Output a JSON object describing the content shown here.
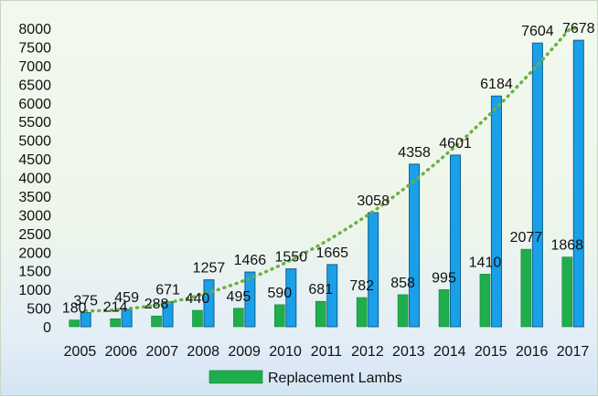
{
  "chart_data": {
    "type": "bar",
    "categories": [
      "2005",
      "2006",
      "2007",
      "2008",
      "2009",
      "2010",
      "2011",
      "2012",
      "2013",
      "2014",
      "2015",
      "2016",
      "2017"
    ],
    "series": [
      {
        "name": "Replacement Lambs",
        "color": "#1fae4c",
        "values": [
          180,
          214,
          288,
          440,
          495,
          590,
          681,
          782,
          858,
          995,
          1410,
          2077,
          1868
        ]
      },
      {
        "color": "#1aa0e8",
        "values": [
          375,
          459,
          671,
          1257,
          1466,
          1550,
          1665,
          3058,
          4358,
          4601,
          6184,
          7604,
          7678
        ]
      }
    ],
    "trendline": {
      "of_series": 1,
      "style": "dotted",
      "color": "#6cb043",
      "kind": "polynomial"
    },
    "title": "",
    "xlabel": "",
    "ylabel": "",
    "ylim": [
      0,
      8000
    ],
    "yticks": [
      0,
      500,
      1000,
      1500,
      2000,
      2500,
      3000,
      3500,
      4000,
      4500,
      5000,
      5500,
      6000,
      6500,
      7000,
      7500,
      8000
    ],
    "grid": false,
    "legend_position": "bottom"
  }
}
